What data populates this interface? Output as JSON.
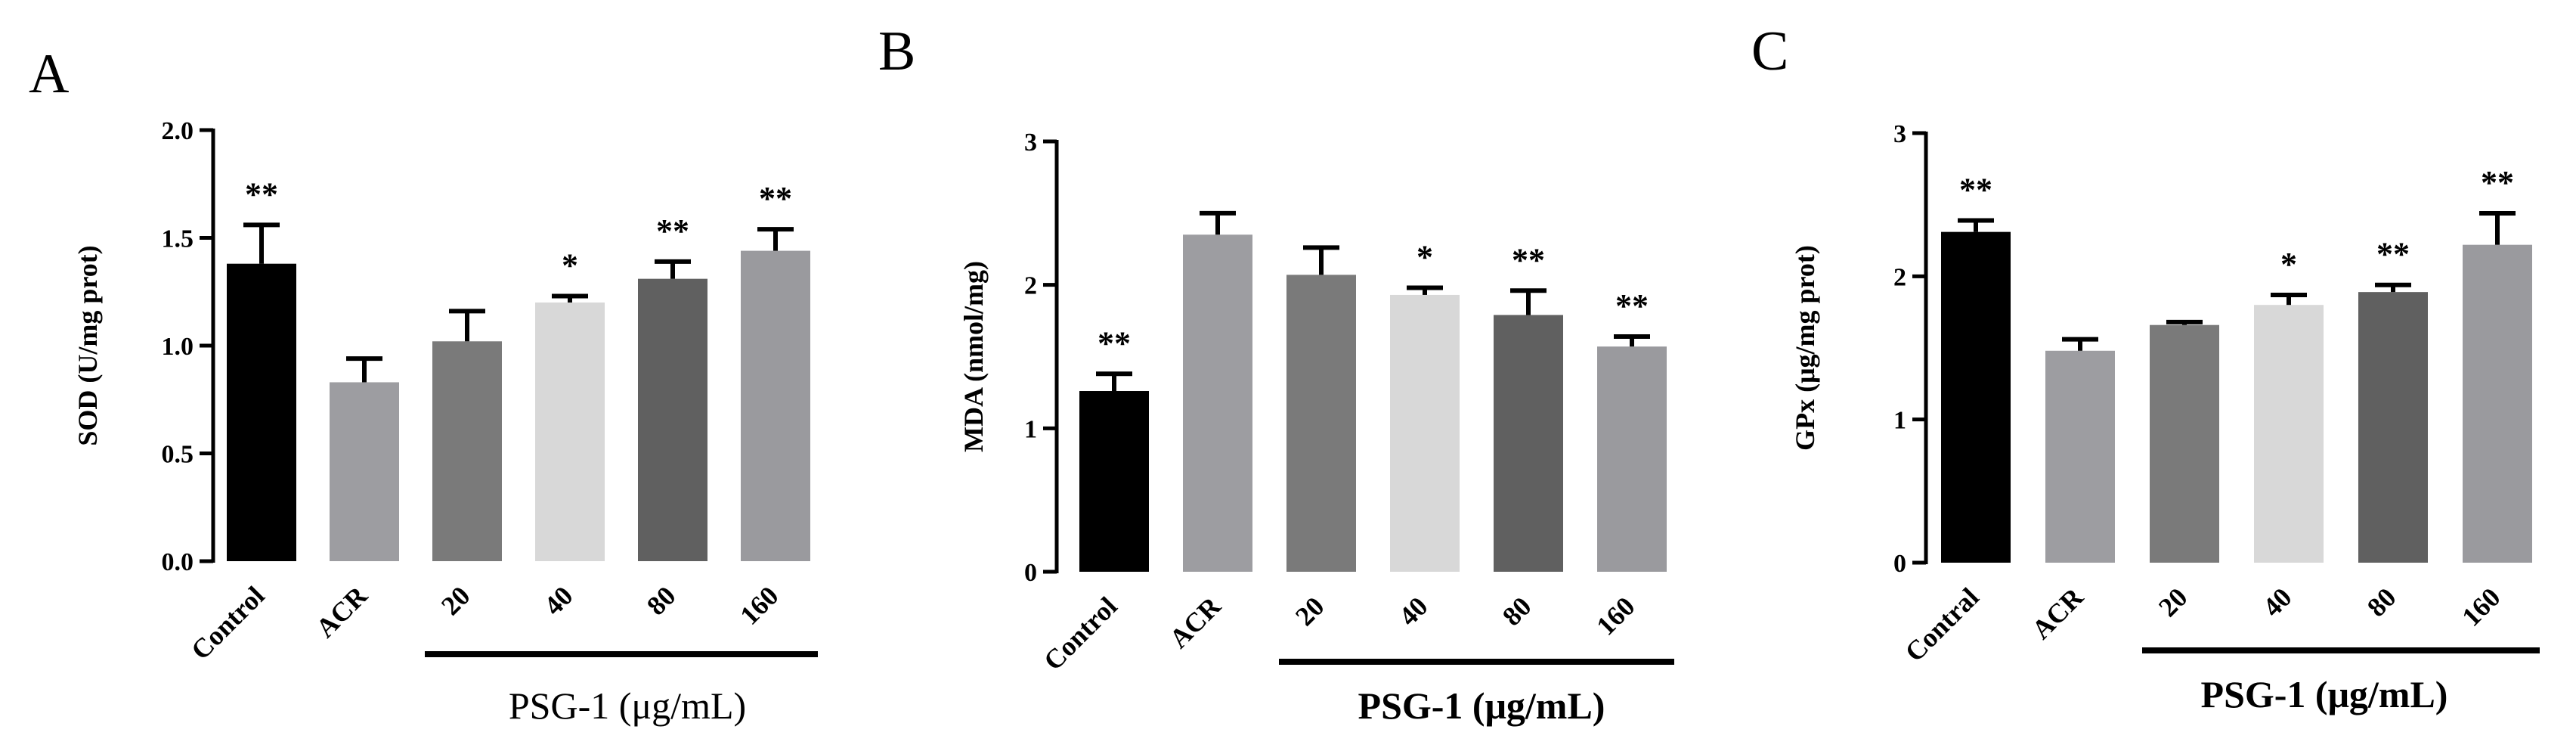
{
  "chart_data": [
    {
      "type": "bar",
      "panel": "A",
      "ylabel": "SOD (U/mg prot)",
      "ylim": [
        0,
        2.0
      ],
      "yticks": [
        "0.0",
        "0.5",
        "1.0",
        "1.5",
        "2.0"
      ],
      "categories": [
        "Control",
        "ACR",
        "20",
        "40",
        "80",
        "160"
      ],
      "values": [
        1.38,
        0.83,
        1.02,
        1.2,
        1.31,
        1.44
      ],
      "errors": [
        0.18,
        0.11,
        0.14,
        0.03,
        0.08,
        0.1
      ],
      "significance": [
        "**",
        "",
        "",
        "*",
        "**",
        "**"
      ],
      "colors": [
        "#000000",
        "#9d9da1",
        "#7a7a7a",
        "#d8d8d8",
        "#606060",
        "#9a9a9e"
      ],
      "group_label": "PSG-1 (μg/mL)",
      "group_label_bold": false
    },
    {
      "type": "bar",
      "panel": "B",
      "ylabel": "MDA (nmol/mg)",
      "ylim": [
        0,
        3
      ],
      "yticks": [
        "0",
        "1",
        "2",
        "3"
      ],
      "categories": [
        "Control",
        "ACR",
        "20",
        "40",
        "80",
        "160"
      ],
      "values": [
        1.26,
        2.35,
        2.07,
        1.93,
        1.79,
        1.57
      ],
      "errors": [
        0.12,
        0.15,
        0.19,
        0.05,
        0.17,
        0.07
      ],
      "significance": [
        "**",
        "",
        "",
        "*",
        "**",
        "**"
      ],
      "colors": [
        "#000000",
        "#9d9da1",
        "#7a7a7a",
        "#d8d8d8",
        "#606060",
        "#9a9a9e"
      ],
      "group_label": "PSG-1 (μg/mL)",
      "group_label_bold": true
    },
    {
      "type": "bar",
      "panel": "C",
      "ylabel": "GPx (μg/mg prot)",
      "ylim": [
        0,
        3
      ],
      "yticks": [
        "0",
        "1",
        "2",
        "3"
      ],
      "categories": [
        "Contral",
        "ACR",
        "20",
        "40",
        "80",
        "160"
      ],
      "values": [
        2.31,
        1.48,
        1.66,
        1.8,
        1.89,
        2.22
      ],
      "errors": [
        0.08,
        0.08,
        0.02,
        0.07,
        0.05,
        0.22
      ],
      "significance": [
        "**",
        "",
        "",
        "*",
        "**",
        "**"
      ],
      "colors": [
        "#000000",
        "#9d9da1",
        "#7a7a7a",
        "#d8d8d8",
        "#606060",
        "#9a9a9e"
      ],
      "group_label": "PSG-1 (μg/mL)",
      "group_label_bold": true
    }
  ]
}
